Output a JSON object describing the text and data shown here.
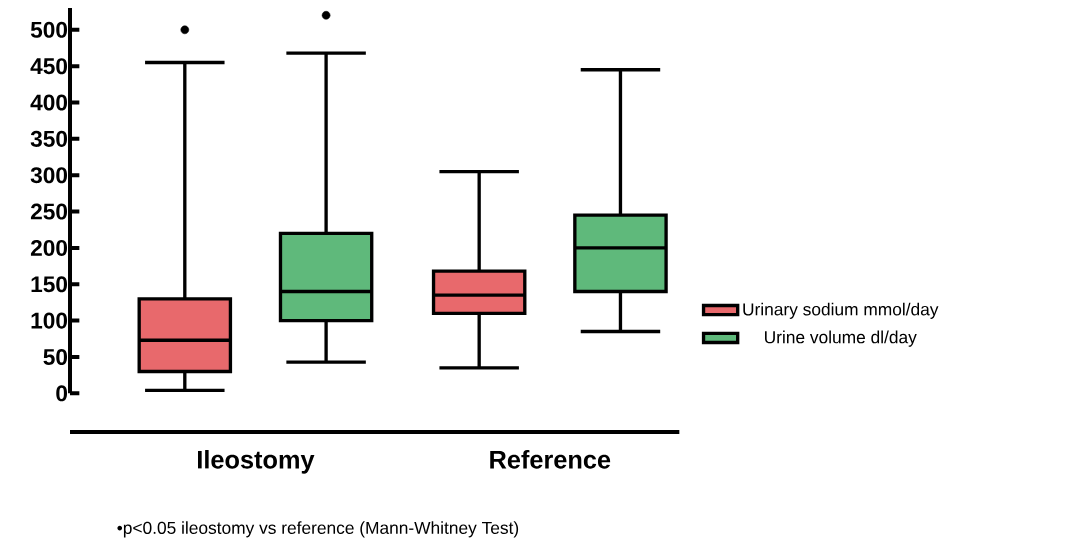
{
  "chart_data": {
    "type": "box",
    "categories": [
      "Ileostomy",
      "Reference"
    ],
    "series": [
      {
        "name": "Urinary sodium mmol/day",
        "color": "#e8696c",
        "boxes": [
          {
            "low": 4,
            "q1": 30,
            "median": 73,
            "q3": 130,
            "high": 455,
            "outliers": [
              500
            ]
          },
          {
            "low": 35,
            "q1": 110,
            "median": 135,
            "q3": 168,
            "high": 305
          }
        ]
      },
      {
        "name": "Urine volume dl/day",
        "color": "#5fb97b",
        "boxes": [
          {
            "low": 43,
            "q1": 100,
            "median": 140,
            "q3": 220,
            "high": 468,
            "outliers": [
              520
            ]
          },
          {
            "low": 85,
            "q1": 140,
            "median": 200,
            "q3": 245,
            "high": 445
          }
        ]
      }
    ],
    "ylim": [
      0,
      530
    ],
    "yticks": [
      0,
      50,
      100,
      150,
      200,
      250,
      300,
      350,
      400,
      450,
      500
    ],
    "legend": "right",
    "annotations": [
      "•p<0.05 ileostomy vs reference (Mann-Whitney Test)"
    ]
  }
}
